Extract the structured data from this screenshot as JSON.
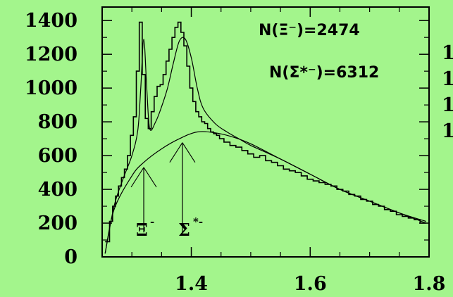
{
  "colors": {
    "background": "#a3f58c",
    "ink": "#000000"
  },
  "chart_data": {
    "type": "line",
    "title": "",
    "xlabel": "",
    "ylabel": "",
    "xlim": [
      1.25,
      1.8
    ],
    "ylim": [
      0,
      1480
    ],
    "x_ticks": [
      "1.4",
      "1.6",
      "1.8"
    ],
    "y_ticks": [
      "0",
      "200",
      "400",
      "600",
      "800",
      "1000",
      "1200",
      "1400"
    ],
    "annotations": {
      "n_xi": "N(Ξ⁻)=2474",
      "n_sigma": "N(Σ*⁻)=6312"
    },
    "peak_labels": [
      {
        "base": "Ξ",
        "sup": "-",
        "x": 1.32
      },
      {
        "base": "Σ",
        "sup": "*-",
        "x": 1.385
      }
    ],
    "right_clipped_ticks": [
      "1",
      "1",
      "1",
      "1"
    ],
    "series": [
      {
        "kind": "histogram",
        "x": [
          1.26,
          1.265,
          1.27,
          1.275,
          1.28,
          1.285,
          1.29,
          1.295,
          1.3,
          1.305,
          1.31,
          1.315,
          1.32,
          1.325,
          1.33,
          1.335,
          1.34,
          1.345,
          1.35,
          1.355,
          1.36,
          1.365,
          1.37,
          1.375,
          1.38,
          1.385,
          1.39,
          1.395,
          1.4,
          1.405,
          1.41,
          1.415,
          1.42,
          1.425,
          1.43,
          1.435,
          1.44,
          1.445,
          1.45,
          1.46,
          1.47,
          1.48,
          1.49,
          1.5,
          1.51,
          1.52,
          1.53,
          1.54,
          1.55,
          1.56,
          1.57,
          1.58,
          1.59,
          1.6,
          1.61,
          1.62,
          1.63,
          1.64,
          1.65,
          1.66,
          1.67,
          1.68,
          1.69,
          1.7,
          1.71,
          1.72,
          1.73,
          1.74,
          1.75,
          1.76,
          1.77,
          1.78,
          1.79
        ],
        "y": [
          90,
          210,
          300,
          360,
          420,
          470,
          520,
          600,
          720,
          830,
          1100,
          1390,
          1080,
          820,
          760,
          860,
          950,
          1010,
          1020,
          1080,
          1160,
          1230,
          1300,
          1360,
          1390,
          1330,
          1250,
          1130,
          1000,
          920,
          860,
          830,
          800,
          790,
          760,
          740,
          730,
          720,
          700,
          680,
          660,
          650,
          630,
          610,
          590,
          600,
          570,
          560,
          540,
          520,
          510,
          500,
          480,
          460,
          450,
          440,
          430,
          420,
          400,
          390,
          370,
          360,
          340,
          330,
          310,
          300,
          280,
          270,
          250,
          240,
          230,
          220,
          200
        ]
      },
      {
        "kind": "fit",
        "x": [
          1.255,
          1.27,
          1.285,
          1.3,
          1.31,
          1.315,
          1.32,
          1.325,
          1.33,
          1.34,
          1.35,
          1.36,
          1.37,
          1.38,
          1.39,
          1.4,
          1.41,
          1.42,
          1.44,
          1.46,
          1.48,
          1.5,
          1.55,
          1.6,
          1.65,
          1.7,
          1.75,
          1.795
        ],
        "y": [
          20,
          300,
          460,
          600,
          750,
          1000,
          1290,
          1000,
          760,
          800,
          890,
          1000,
          1150,
          1280,
          1290,
          1180,
          1000,
          880,
          790,
          740,
          700,
          660,
          580,
          490,
          400,
          330,
          260,
          200
        ]
      },
      {
        "kind": "background",
        "x": [
          1.255,
          1.27,
          1.3,
          1.32,
          1.35,
          1.38,
          1.41,
          1.44,
          1.47,
          1.5,
          1.55,
          1.6,
          1.65,
          1.7,
          1.75,
          1.795
        ],
        "y": [
          20,
          280,
          480,
          560,
          640,
          700,
          740,
          735,
          710,
          670,
          580,
          490,
          400,
          330,
          260,
          210
        ]
      }
    ]
  }
}
